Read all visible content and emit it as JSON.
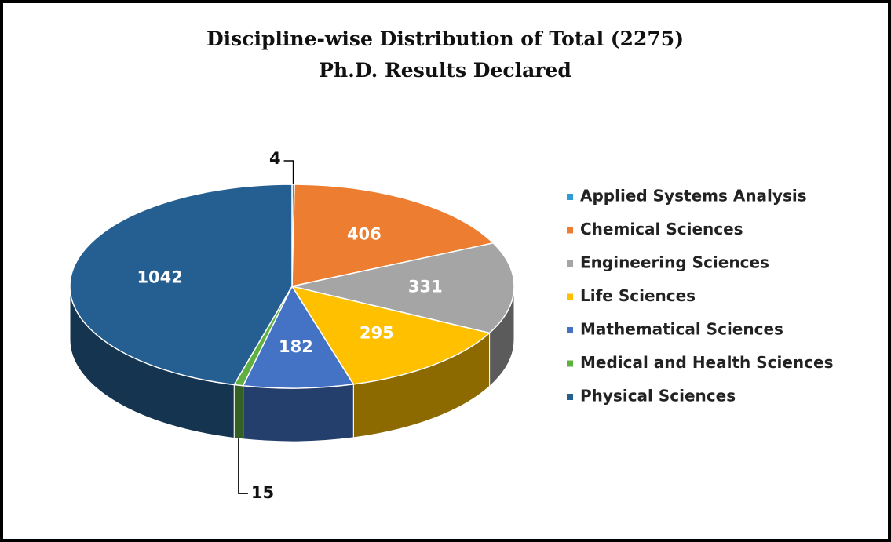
{
  "chart_data": {
    "type": "pie",
    "title": [
      "Discipline-wise Distribution of Total (2275)",
      "Ph.D. Results Declared"
    ],
    "categories": [
      "Applied Systems Analysis",
      "Chemical Sciences",
      "Engineering Sciences",
      "Life Sciences",
      "Mathematical Sciences",
      "Medical and Health Sciences",
      "Physical Sciences"
    ],
    "values": [
      4,
      406,
      331,
      295,
      182,
      15,
      1042
    ],
    "colors": [
      "#2e9bd6",
      "#ed7d31",
      "#a5a5a5",
      "#ffc000",
      "#4472c4",
      "#5fb040",
      "#255e91"
    ],
    "legend": "right"
  }
}
